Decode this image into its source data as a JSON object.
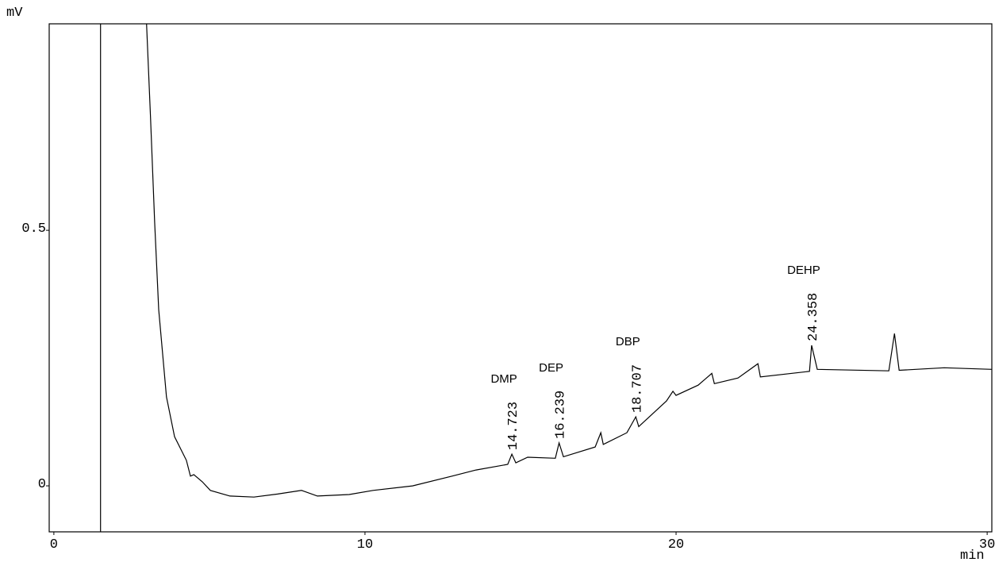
{
  "chart_data": {
    "type": "line",
    "y_label": "mV",
    "x_label": "min",
    "xlim": [
      -0.15,
      30.15
    ],
    "ylim": [
      -0.09,
      0.904
    ],
    "xticks": [
      0,
      10,
      20,
      30
    ],
    "yticks": [
      0,
      0.5
    ],
    "series": [
      {
        "color": "#000000",
        "x": [
          1.5,
          1.5,
          2.2,
          2.98,
          3.11,
          3.24,
          3.37,
          3.62,
          3.88,
          4.26,
          4.39,
          4.5,
          4.77,
          5.03,
          5.66,
          6.43,
          7.19,
          7.96,
          8.47,
          9.49,
          10.26,
          11.53,
          12.8,
          13.57,
          14.59,
          14.723,
          14.85,
          15.23,
          16.12,
          16.239,
          16.38,
          17.4,
          17.58,
          17.66,
          18.42,
          18.707,
          18.8,
          19.69,
          19.9,
          20.0,
          20.71,
          21.15,
          21.23,
          21.99,
          22.63,
          22.71,
          24.29,
          24.358,
          24.54,
          26.84,
          27.02,
          27.17,
          28.62,
          30.15
        ],
        "values": [
          -0.09,
          0.904,
          null,
          0.904,
          0.717,
          0.516,
          0.345,
          0.174,
          0.096,
          0.05,
          0.019,
          0.022,
          0.008,
          -0.009,
          -0.02,
          -0.022,
          -0.016,
          -0.009,
          -0.02,
          -0.017,
          -0.009,
          0.0,
          0.019,
          0.031,
          0.042,
          0.062,
          0.045,
          0.056,
          0.054,
          0.084,
          0.057,
          0.076,
          0.104,
          0.081,
          0.104,
          0.135,
          0.116,
          0.166,
          0.185,
          0.177,
          0.197,
          0.22,
          0.2,
          0.211,
          0.239,
          0.213,
          0.224,
          0.275,
          0.228,
          0.225,
          0.298,
          0.226,
          0.231,
          0.228
        ]
      }
    ],
    "annotations": [
      {
        "text": "DMP",
        "x": 14.723,
        "y": 0.062
      },
      {
        "text": "DEP",
        "x": 16.239,
        "y": 0.084
      },
      {
        "text": "DBP",
        "x": 18.707,
        "y": 0.135
      },
      {
        "text": "DEHP",
        "x": 24.358,
        "y": 0.275
      }
    ]
  }
}
